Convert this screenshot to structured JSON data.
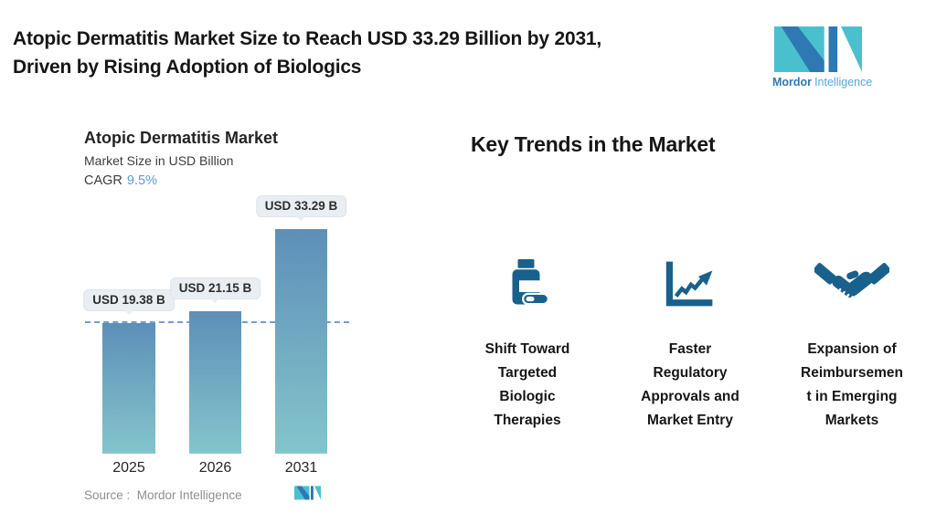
{
  "header": {
    "title_line1": "Atopic Dermatitis Market Size to Reach USD 33.29 Billion by 2031,",
    "title_line2": "Driven by Rising Adoption of Biologics",
    "logo": {
      "brand_bold": "Mordor",
      "brand_light": "Intelligence"
    }
  },
  "chart": {
    "title": "Atopic Dermatitis Market",
    "subtitle": "Market Size in USD Billion",
    "cagr_label": "CAGR",
    "cagr_value": "9.5%",
    "source_label": "Source :  Mordor Intelligence"
  },
  "chart_data": {
    "type": "bar",
    "title": "Atopic Dermatitis Market",
    "ylabel": "Market Size in USD Billion",
    "cagr": "9.5%",
    "categories": [
      "2025",
      "2026",
      "2031"
    ],
    "values": [
      19.38,
      21.15,
      33.29
    ],
    "bar_labels": [
      "USD 19.38 B",
      "USD 21.15 B",
      "USD 33.29 B"
    ],
    "reference_line": 19.38,
    "ylim": [
      0,
      37
    ],
    "grid": false,
    "legend": false,
    "bar_gradient": [
      "#5d8fb8",
      "#84c5cc"
    ]
  },
  "trends": {
    "heading": "Key Trends in the Market",
    "items": [
      {
        "icon": "pill-bottle-icon",
        "label": "Shift Toward\nTargeted\nBiologic\nTherapies"
      },
      {
        "icon": "line-chart-up-icon",
        "label": "Faster\nRegulatory\nApprovals and\nMarket Entry"
      },
      {
        "icon": "handshake-icon",
        "label": "Expansion of\nReimbursemen\nt in Emerging\nMarkets"
      }
    ]
  },
  "colors": {
    "accent-blue": "#5b9bd5",
    "bar-top": "#5d8fb8",
    "bar-bottom": "#84c5cc",
    "dashed-line": "#6f9fd0",
    "icon-blue": "#19618c",
    "logo-teal": "#4ac0cf",
    "logo-blue": "#2e78b4",
    "logo-light-blue": "#56a6d8",
    "callout-bg": "#e9eef3",
    "callout-border": "#dde4ea",
    "text-dark": "#161616",
    "text-gray": "#8a8f94"
  }
}
